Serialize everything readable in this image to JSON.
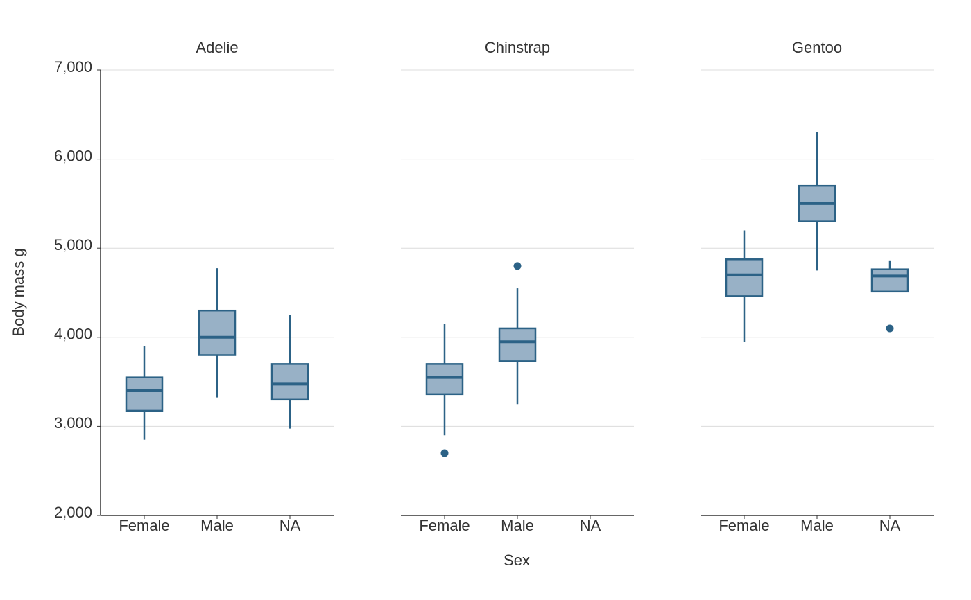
{
  "chart_data": {
    "type": "box",
    "y_label": "Body mass g",
    "x_label": "Sex",
    "ylim": [
      2000,
      7000
    ],
    "yticks": [
      {
        "value": 2000,
        "label": "2,000"
      },
      {
        "value": 3000,
        "label": "3,000"
      },
      {
        "value": 4000,
        "label": "4,000"
      },
      {
        "value": 5000,
        "label": "5,000"
      },
      {
        "value": 6000,
        "label": "6,000"
      },
      {
        "value": 7000,
        "label": "7,000"
      }
    ],
    "grid": true,
    "color": "#2c6286",
    "fill_color": "#98b1c6",
    "facets": [
      {
        "title": "Adelie",
        "categories": [
          "Female",
          "Male",
          "NA"
        ],
        "boxes": [
          {
            "low": 2850,
            "q1": 3175,
            "median": 3400,
            "q3": 3550,
            "high": 3900,
            "outliers": []
          },
          {
            "low": 3325,
            "q1": 3800,
            "median": 4000,
            "q3": 4300,
            "high": 4775,
            "outliers": []
          },
          {
            "low": 2975,
            "q1": 3300,
            "median": 3475,
            "q3": 3700,
            "high": 4250,
            "outliers": []
          }
        ]
      },
      {
        "title": "Chinstrap",
        "categories": [
          "Female",
          "Male",
          "NA"
        ],
        "boxes": [
          {
            "low": 2900,
            "q1": 3362,
            "median": 3550,
            "q3": 3700,
            "high": 4150,
            "outliers": [
              2700
            ]
          },
          {
            "low": 3250,
            "q1": 3731,
            "median": 3950,
            "q3": 4100,
            "high": 4550,
            "outliers": [
              4800
            ]
          },
          null
        ]
      },
      {
        "title": "Gentoo",
        "categories": [
          "Female",
          "Male",
          "NA"
        ],
        "boxes": [
          {
            "low": 3950,
            "q1": 4462,
            "median": 4700,
            "q3": 4875,
            "high": 5200,
            "outliers": []
          },
          {
            "low": 4750,
            "q1": 5300,
            "median": 5500,
            "q3": 5700,
            "high": 6300,
            "outliers": []
          },
          {
            "low": 4513,
            "q1": 4513,
            "median": 4688,
            "q3": 4763,
            "high": 4863,
            "outliers": [
              4100
            ]
          }
        ]
      }
    ]
  }
}
